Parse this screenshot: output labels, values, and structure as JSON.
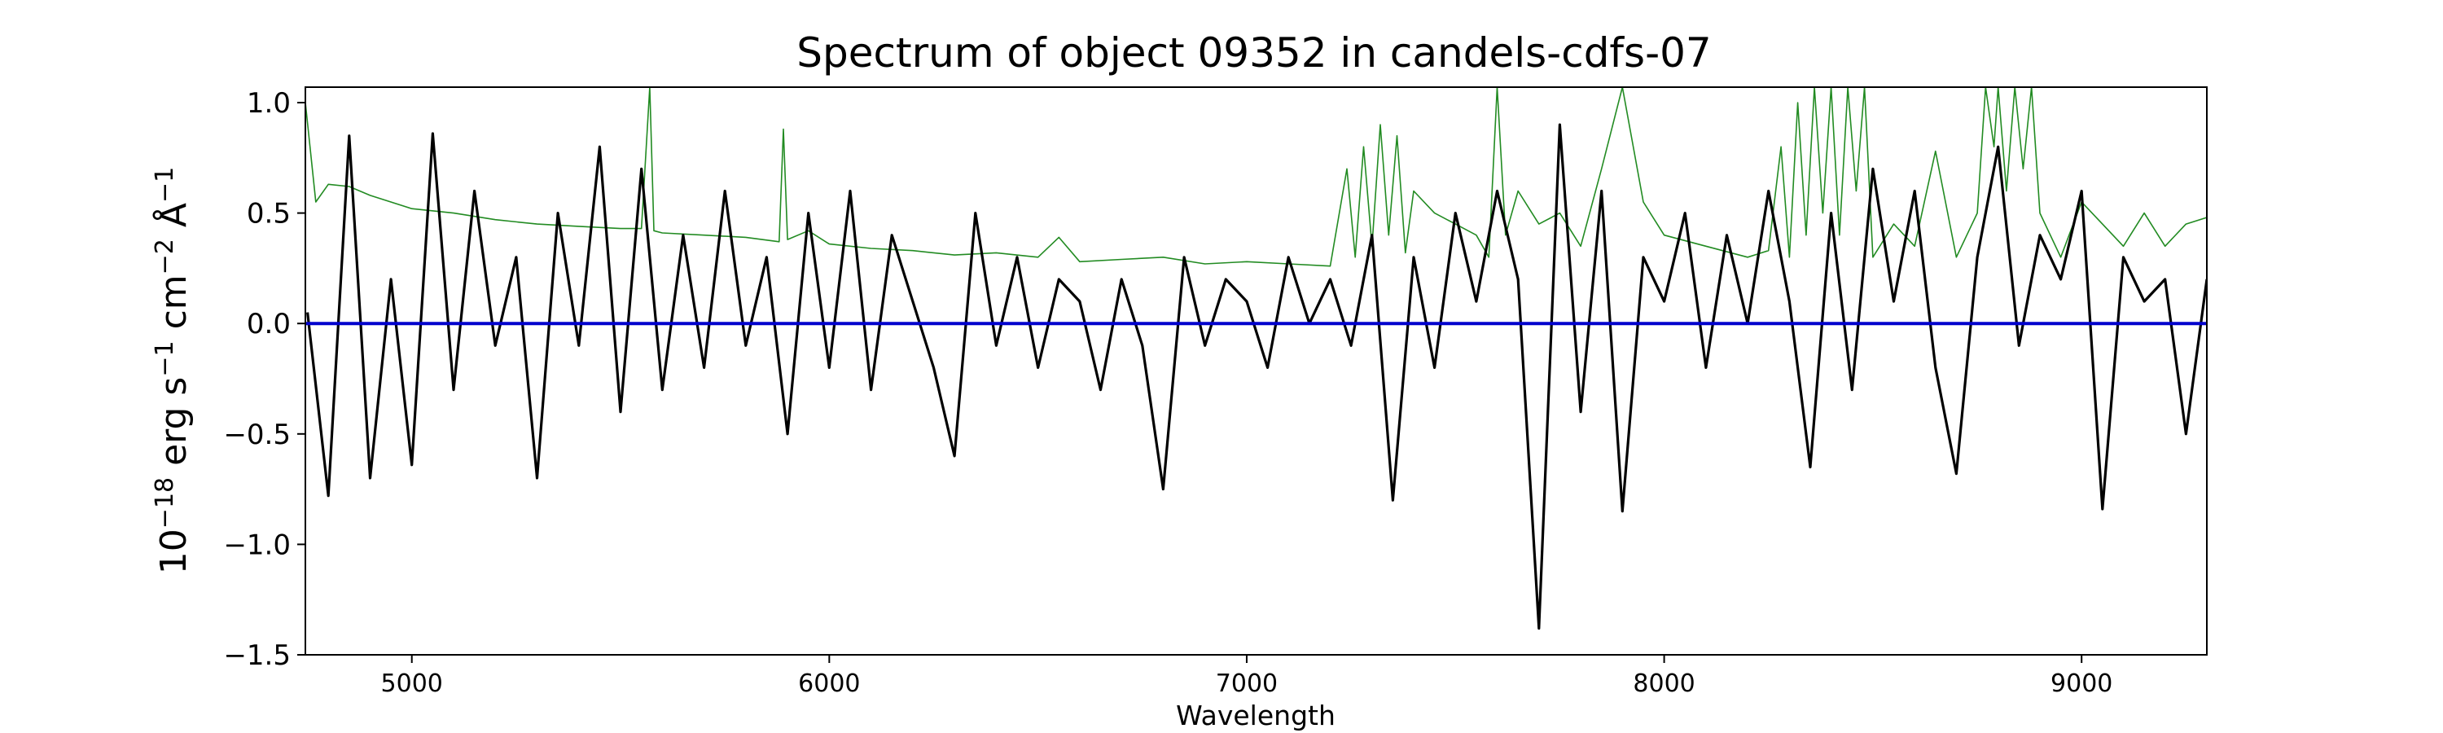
{
  "chart_data": {
    "type": "line",
    "title": "Spectrum of object 09352 in candels-cdfs-07",
    "xlabel": "Wavelength",
    "ylabel_parts": {
      "base": "10",
      "base_exp": "−18",
      "unit1": " erg s",
      "unit1_exp": "−1",
      "unit2": " cm",
      "unit2_exp": "−2",
      "unit3": " Å",
      "unit3_exp": "−1"
    },
    "xlim": [
      4745,
      9300
    ],
    "ylim": [
      -1.5,
      1.07
    ],
    "xticks": [
      5000,
      6000,
      7000,
      8000,
      9000
    ],
    "xtick_labels": [
      "5000",
      "6000",
      "7000",
      "8000",
      "9000"
    ],
    "yticks": [
      1.0,
      0.5,
      0.0,
      -0.5,
      -1.0,
      -1.5
    ],
    "ytick_labels": [
      "1.0",
      "0.5",
      "0.0",
      "−0.5",
      "−1.0",
      "−1.5"
    ],
    "grid": false,
    "legend": "none",
    "series": [
      {
        "color": "#000000",
        "x": [
          4750,
          4800,
          4850,
          4900,
          4950,
          5000,
          5050,
          5100,
          5150,
          5200,
          5250,
          5300,
          5350,
          5400,
          5450,
          5500,
          5550,
          5600,
          5650,
          5700,
          5750,
          5800,
          5850,
          5900,
          5950,
          6000,
          6050,
          6100,
          6150,
          6200,
          6250,
          6300,
          6350,
          6400,
          6450,
          6500,
          6550,
          6600,
          6650,
          6700,
          6750,
          6800,
          6850,
          6900,
          6950,
          7000,
          7050,
          7100,
          7150,
          7200,
          7250,
          7300,
          7350,
          7400,
          7450,
          7500,
          7550,
          7600,
          7650,
          7700,
          7750,
          7800,
          7850,
          7900,
          7950,
          8000,
          8050,
          8100,
          8150,
          8200,
          8250,
          8300,
          8350,
          8400,
          8450,
          8500,
          8550,
          8600,
          8650,
          8700,
          8750,
          8800,
          8850,
          8900,
          8950,
          9000,
          9050,
          9100,
          9150,
          9200,
          9250,
          9300
        ],
        "y": [
          0.05,
          -0.78,
          0.85,
          -0.7,
          0.2,
          -0.64,
          0.86,
          -0.3,
          0.6,
          -0.1,
          0.3,
          -0.7,
          0.5,
          -0.1,
          0.8,
          -0.4,
          0.7,
          -0.3,
          0.4,
          -0.2,
          0.6,
          -0.1,
          0.3,
          -0.5,
          0.5,
          -0.2,
          0.6,
          -0.3,
          0.4,
          0.1,
          -0.2,
          -0.6,
          0.5,
          -0.1,
          0.3,
          -0.2,
          0.2,
          0.1,
          -0.3,
          0.2,
          -0.1,
          -0.75,
          0.3,
          -0.1,
          0.2,
          0.1,
          -0.2,
          0.3,
          0.0,
          0.2,
          -0.1,
          0.4,
          -0.8,
          0.3,
          -0.2,
          0.5,
          0.1,
          0.6,
          0.2,
          -1.38,
          0.9,
          -0.4,
          0.6,
          -0.85,
          0.3,
          0.1,
          0.5,
          -0.2,
          0.4,
          0.0,
          0.6,
          0.1,
          -0.65,
          0.5,
          -0.3,
          0.7,
          0.1,
          0.6,
          -0.2,
          -0.68,
          0.3,
          0.8,
          -0.1,
          0.4,
          0.2,
          0.6,
          -0.84,
          0.3,
          0.1,
          0.2,
          -0.5,
          0.2
        ]
      },
      {
        "color": "#228b22",
        "x": [
          4745,
          4770,
          4800,
          4850,
          4900,
          5000,
          5100,
          5200,
          5300,
          5400,
          5500,
          5550,
          5570,
          5580,
          5600,
          5700,
          5800,
          5880,
          5890,
          5900,
          5950,
          6000,
          6100,
          6200,
          6300,
          6400,
          6500,
          6550,
          6600,
          6700,
          6800,
          6900,
          7000,
          7100,
          7200,
          7240,
          7260,
          7280,
          7300,
          7320,
          7340,
          7360,
          7380,
          7400,
          7450,
          7500,
          7550,
          7580,
          7600,
          7620,
          7650,
          7700,
          7750,
          7800,
          7850,
          7900,
          7950,
          8000,
          8100,
          8200,
          8250,
          8280,
          8300,
          8320,
          8340,
          8360,
          8380,
          8400,
          8420,
          8440,
          8460,
          8480,
          8500,
          8550,
          8600,
          8650,
          8700,
          8750,
          8770,
          8790,
          8800,
          8820,
          8840,
          8860,
          8880,
          8900,
          8950,
          9000,
          9050,
          9100,
          9150,
          9200,
          9250,
          9300
        ],
        "y": [
          1.0,
          0.55,
          0.63,
          0.62,
          0.58,
          0.52,
          0.5,
          0.47,
          0.45,
          0.44,
          0.43,
          0.43,
          1.07,
          0.42,
          0.41,
          0.4,
          0.39,
          0.37,
          0.88,
          0.38,
          0.42,
          0.36,
          0.34,
          0.33,
          0.31,
          0.32,
          0.3,
          0.39,
          0.28,
          0.29,
          0.3,
          0.27,
          0.28,
          0.27,
          0.26,
          0.7,
          0.3,
          0.8,
          0.35,
          0.9,
          0.4,
          0.85,
          0.32,
          0.6,
          0.5,
          0.45,
          0.4,
          0.3,
          1.07,
          0.4,
          0.6,
          0.45,
          0.5,
          0.35,
          0.7,
          1.07,
          0.55,
          0.4,
          0.35,
          0.3,
          0.33,
          0.8,
          0.3,
          1.0,
          0.4,
          1.07,
          0.5,
          1.07,
          0.4,
          1.07,
          0.6,
          1.07,
          0.3,
          0.45,
          0.35,
          0.78,
          0.3,
          0.5,
          1.07,
          0.8,
          1.07,
          0.6,
          1.07,
          0.7,
          1.07,
          0.5,
          0.3,
          0.55,
          0.45,
          0.35,
          0.5,
          0.35,
          0.45,
          0.48
        ]
      },
      {
        "color": "#0000cd",
        "x": [
          4745,
          9300
        ],
        "y": [
          0.0,
          0.0
        ]
      }
    ]
  }
}
